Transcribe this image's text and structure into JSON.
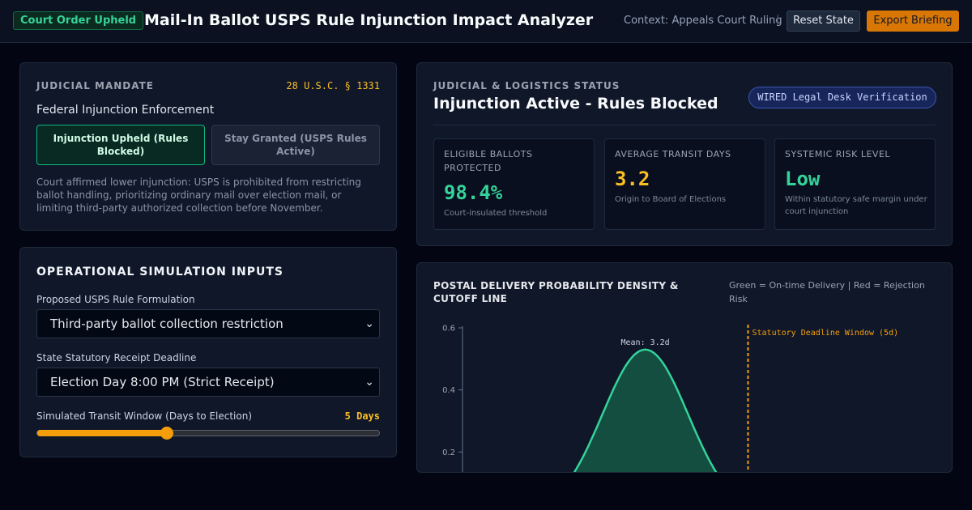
{
  "header": {
    "status_badge": "Court Order Upheld",
    "title": "Mail-In Ballot USPS Rule Injunction Impact Analyzer",
    "context": "Context: Appeals Court Ruling",
    "separator": "|",
    "reset_label": "Reset State",
    "export_label": "Export Briefing"
  },
  "mandate": {
    "caption": "JUDICIAL MANDATE",
    "statute": "28 U.S.C. § 1331",
    "heading": "Federal Injunction Enforcement",
    "options": [
      {
        "label": "Injunction Upheld (Rules Blocked)",
        "selected": true
      },
      {
        "label": "Stay Granted (USPS Rules Active)",
        "selected": false
      }
    ],
    "description": "Court affirmed lower injunction: USPS is prohibited from restricting ballot handling, prioritizing ordinary mail over election mail, or limiting third-party authorized collection before November."
  },
  "ops": {
    "title": "OPERATIONAL SIMULATION INPUTS",
    "rule_label": "Proposed USPS Rule Formulation",
    "rule_value": "Third-party ballot collection restriction",
    "deadline_label": "State Statutory Receipt Deadline",
    "deadline_value": "Election Day 8:00 PM (Strict Receipt)",
    "transit_label": "Simulated Transit Window (Days to Election)",
    "transit_value": "5 Days",
    "transit_fraction": 0.38
  },
  "status": {
    "caption": "JUDICIAL & LOGISTICS STATUS",
    "heading": "Injunction Active - Rules Blocked",
    "verification": "WIRED Legal Desk Verification",
    "metrics": [
      {
        "label": "ELIGIBLE BALLOTS PROTECTED",
        "value": "98.4%",
        "sub": "Court-insulated threshold",
        "color": "#34d399"
      },
      {
        "label": "AVERAGE TRANSIT DAYS",
        "value": "3.2",
        "sub": "Origin to Board of Elections",
        "color": "#fbbf24"
      },
      {
        "label": "SYSTEMIC RISK LEVEL",
        "value": "Low",
        "sub": "Within statutory safe margin under court injunction",
        "color": "#34d399"
      }
    ]
  },
  "chart_panel": {
    "title": "POSTAL DELIVERY PROBABILITY DENSITY & CUTOFF LINE",
    "legend": "Green = On-time Delivery | Red = Rejection Risk"
  },
  "chart_data": {
    "type": "area",
    "title": "POSTAL DELIVERY PROBABILITY DENSITY & CUTOFF LINE",
    "xlabel": "",
    "ylabel": "",
    "xlim": [
      0,
      8
    ],
    "ylim": [
      0,
      0.6
    ],
    "y_ticks": [
      "0.6",
      "0.4",
      "0.2"
    ],
    "series": [
      {
        "type": "normal-density",
        "mean": 3.2,
        "peak": 0.53,
        "sd": 0.75,
        "color": "#34d399",
        "fill": "#134e40"
      }
    ],
    "annotations": {
      "mean_label": "Mean: 3.2d",
      "cutoff_x": 5,
      "cutoff_label": "Statutory Deadline Window (5d)",
      "cutoff_color": "#f59e0b"
    },
    "grid": false,
    "legend": "top-right"
  }
}
